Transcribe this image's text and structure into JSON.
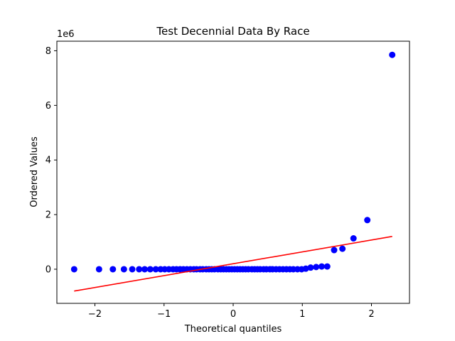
{
  "chart_data": {
    "type": "scatter",
    "title": "Test Decennial Data By Race",
    "xlabel": "Theoretical quantiles",
    "ylabel": "Ordered Values",
    "y_offset_label": "1e6",
    "xlim": [
      -2.55,
      2.55
    ],
    "ylim": [
      -1.25,
      8.35
    ],
    "x_ticks": [
      -2,
      -1,
      0,
      1,
      2
    ],
    "x_tick_labels": [
      "−2",
      "−1",
      "0",
      "1",
      "2"
    ],
    "y_ticks": [
      0,
      2,
      4,
      6,
      8
    ],
    "y_tick_labels": [
      "0",
      "2",
      "4",
      "6",
      "8"
    ],
    "grid": false,
    "point_color": "#0000ff",
    "line_color": "#ff0000",
    "points": {
      "x": [
        -2.3,
        -1.94,
        -1.74,
        -1.58,
        -1.46,
        -1.36,
        -1.28,
        -1.2,
        -1.12,
        -1.05,
        -0.99,
        -0.93,
        -0.87,
        -0.82,
        -0.77,
        -0.72,
        -0.67,
        -0.62,
        -0.57,
        -0.53,
        -0.48,
        -0.44,
        -0.39,
        -0.35,
        -0.31,
        -0.27,
        -0.22,
        -0.18,
        -0.14,
        -0.1,
        -0.06,
        -0.02,
        0.02,
        0.06,
        0.1,
        0.14,
        0.18,
        0.22,
        0.27,
        0.31,
        0.35,
        0.39,
        0.44,
        0.48,
        0.53,
        0.57,
        0.62,
        0.67,
        0.72,
        0.77,
        0.82,
        0.87,
        0.93,
        0.99,
        1.05,
        1.12,
        1.2,
        1.28,
        1.36,
        1.46,
        1.58,
        1.74,
        1.94,
        2.3
      ],
      "y": [
        0,
        0,
        0,
        0,
        0,
        0,
        0,
        0,
        0,
        0,
        0,
        0,
        0,
        0,
        0,
        0,
        0,
        0,
        0,
        0,
        0,
        0,
        0,
        0,
        0,
        0,
        0,
        0,
        0,
        0,
        0,
        0,
        0,
        0,
        0,
        0,
        0,
        0,
        0,
        0,
        0,
        0,
        0,
        0,
        0,
        0,
        0,
        0,
        0,
        0,
        0,
        0,
        0,
        0,
        0.02,
        0.06,
        0.08,
        0.1,
        0.1,
        0.7,
        0.75,
        1.13,
        1.8,
        7.85
      ]
    },
    "fit_line": {
      "x": [
        -2.3,
        2.3
      ],
      "y": [
        -0.8,
        1.2
      ]
    }
  }
}
